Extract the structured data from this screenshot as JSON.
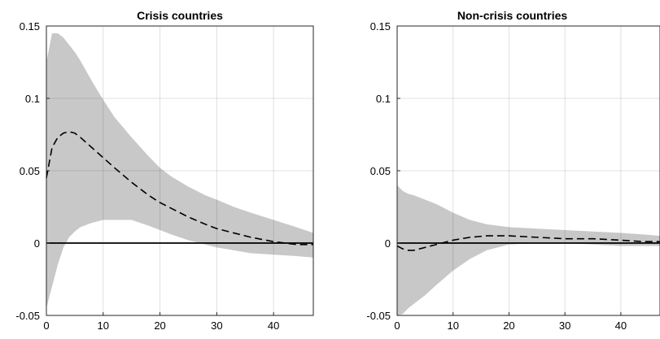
{
  "chart_data": [
    {
      "type": "line",
      "title": "Crisis countries",
      "xlabel": "",
      "ylabel": "",
      "xlim": [
        0,
        47
      ],
      "ylim": [
        -0.05,
        0.15
      ],
      "xticks": [
        0,
        10,
        20,
        30,
        40
      ],
      "xtick_labels": [
        "0",
        "10",
        "20",
        "30",
        "40"
      ],
      "yticks": [
        -0.05,
        0,
        0.05,
        0.1,
        0.15
      ],
      "ytick_labels": [
        "-0.05",
        "0",
        "0.05",
        "0.1",
        "0.15"
      ],
      "grid": true,
      "zero_line": true,
      "x": [
        0,
        1,
        2,
        3,
        4,
        5,
        6,
        8,
        10,
        12,
        15,
        18,
        20,
        22,
        25,
        28,
        30,
        33,
        36,
        40,
        44,
        47
      ],
      "series": [
        {
          "role": "upper_band",
          "values": [
            0.125,
            0.145,
            0.145,
            0.142,
            0.137,
            0.132,
            0.126,
            0.112,
            0.099,
            0.087,
            0.073,
            0.06,
            0.052,
            0.046,
            0.039,
            0.033,
            0.03,
            0.025,
            0.021,
            0.016,
            0.011,
            0.007
          ]
        },
        {
          "role": "lower_band",
          "values": [
            -0.045,
            -0.03,
            -0.015,
            -0.003,
            0.004,
            0.008,
            0.011,
            0.014,
            0.016,
            0.016,
            0.016,
            0.012,
            0.009,
            0.006,
            0.002,
            -0.001,
            -0.003,
            -0.005,
            -0.007,
            -0.008,
            -0.009,
            -0.01
          ]
        },
        {
          "role": "response",
          "values": [
            0.045,
            0.066,
            0.073,
            0.076,
            0.077,
            0.076,
            0.073,
            0.066,
            0.059,
            0.052,
            0.042,
            0.033,
            0.028,
            0.024,
            0.018,
            0.013,
            0.01,
            0.007,
            0.004,
            0.001,
            -0.001,
            -0.001
          ]
        }
      ]
    },
    {
      "type": "line",
      "title": "Non-crisis countries",
      "xlabel": "",
      "ylabel": "",
      "xlim": [
        0,
        47
      ],
      "ylim": [
        -0.05,
        0.15
      ],
      "xticks": [
        0,
        10,
        20,
        30,
        40
      ],
      "xtick_labels": [
        "0",
        "10",
        "20",
        "30",
        "40"
      ],
      "yticks": [
        -0.05,
        0,
        0.05,
        0.1,
        0.15
      ],
      "ytick_labels": [
        "-0.05",
        "0",
        "0.05",
        "0.1",
        "0.15"
      ],
      "grid": true,
      "zero_line": true,
      "x": [
        0,
        1,
        2,
        3,
        5,
        7,
        10,
        13,
        16,
        20,
        25,
        30,
        35,
        40,
        44,
        47
      ],
      "series": [
        {
          "role": "upper_band",
          "values": [
            0.04,
            0.036,
            0.034,
            0.033,
            0.03,
            0.027,
            0.021,
            0.016,
            0.013,
            0.011,
            0.01,
            0.009,
            0.008,
            0.007,
            0.006,
            0.005
          ]
        },
        {
          "role": "lower_band",
          "values": [
            -0.05,
            -0.049,
            -0.045,
            -0.042,
            -0.036,
            -0.029,
            -0.019,
            -0.011,
            -0.005,
            -0.001,
            0.0,
            0.0,
            -0.001,
            -0.002,
            -0.002,
            -0.002
          ]
        },
        {
          "role": "response",
          "values": [
            -0.002,
            -0.004,
            -0.005,
            -0.005,
            -0.003,
            -0.001,
            0.002,
            0.004,
            0.005,
            0.005,
            0.004,
            0.003,
            0.003,
            0.002,
            0.001,
            0.001
          ]
        }
      ]
    }
  ]
}
